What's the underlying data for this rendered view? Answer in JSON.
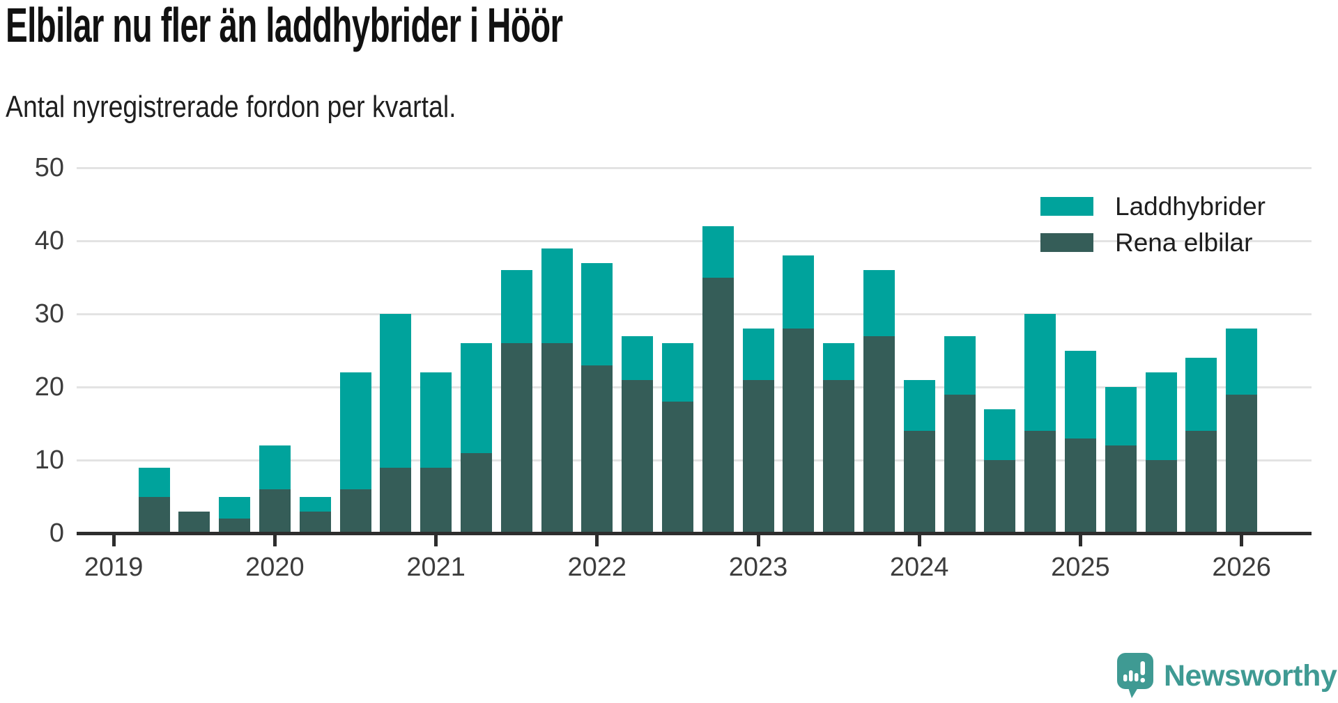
{
  "header": {
    "title": "Elbilar nu fler än laddhybrider i Höör",
    "subtitle": "Antal nyregistrerade fordon per kvartal."
  },
  "chart_data": {
    "type": "bar",
    "stacked": true,
    "title": "Elbilar nu fler än laddhybrider i Höör",
    "subtitle": "Antal nyregistrerade fordon per kvartal.",
    "categories": [
      "2019 K2",
      "2019 K3",
      "2019 K4",
      "2020 K1",
      "2020 K2",
      "2020 K3",
      "2020 K4",
      "2021 K1",
      "2021 K2",
      "2021 K3",
      "2021 K4",
      "2022 K1",
      "2022 K2",
      "2022 K3",
      "2022 K4",
      "2023 K1",
      "2023 K2",
      "2023 K3",
      "2023 K4",
      "2024 K1",
      "2024 K2",
      "2024 K3",
      "2024 K4",
      "2025 K1",
      "2025 K2",
      "2025 K3",
      "2025 K4",
      "2026 K1"
    ],
    "series": [
      {
        "name": "Rena elbilar",
        "color": "#355d58",
        "stack_order": "bottom",
        "values": [
          5,
          3,
          2,
          6,
          3,
          6,
          9,
          9,
          11,
          26,
          26,
          23,
          21,
          18,
          35,
          21,
          28,
          21,
          27,
          14,
          19,
          10,
          14,
          13,
          12,
          10,
          14,
          19
        ]
      },
      {
        "name": "Laddhybrider",
        "color": "#00a39c",
        "stack_order": "top",
        "values": [
          4,
          0,
          3,
          6,
          2,
          16,
          21,
          13,
          15,
          10,
          13,
          14,
          6,
          8,
          7,
          7,
          10,
          5,
          9,
          7,
          8,
          7,
          16,
          12,
          8,
          12,
          10,
          9
        ]
      }
    ],
    "totals": [
      9,
      3,
      5,
      12,
      5,
      22,
      30,
      22,
      26,
      36,
      39,
      37,
      27,
      26,
      42,
      28,
      38,
      26,
      36,
      21,
      27,
      17,
      30,
      25,
      20,
      22,
      24,
      28
    ],
    "legend": [
      {
        "label": "Laddhybrider",
        "color": "#00a39c"
      },
      {
        "label": "Rena elbilar",
        "color": "#355d58"
      }
    ],
    "ylim": [
      0,
      50
    ],
    "yticks": [
      0,
      10,
      20,
      30,
      40,
      50
    ],
    "xticks": [
      2019,
      2020,
      2021,
      2022,
      2023,
      2024,
      2025,
      2026
    ],
    "grid": true,
    "legend_position": "top-right",
    "axis_color": "#2d2d2d",
    "grid_color": "#e3e3e3",
    "tick_label_color": "#3c3c3c"
  },
  "branding": {
    "logo_text": "Newsworthy",
    "logo_color": "#3f9a93"
  }
}
